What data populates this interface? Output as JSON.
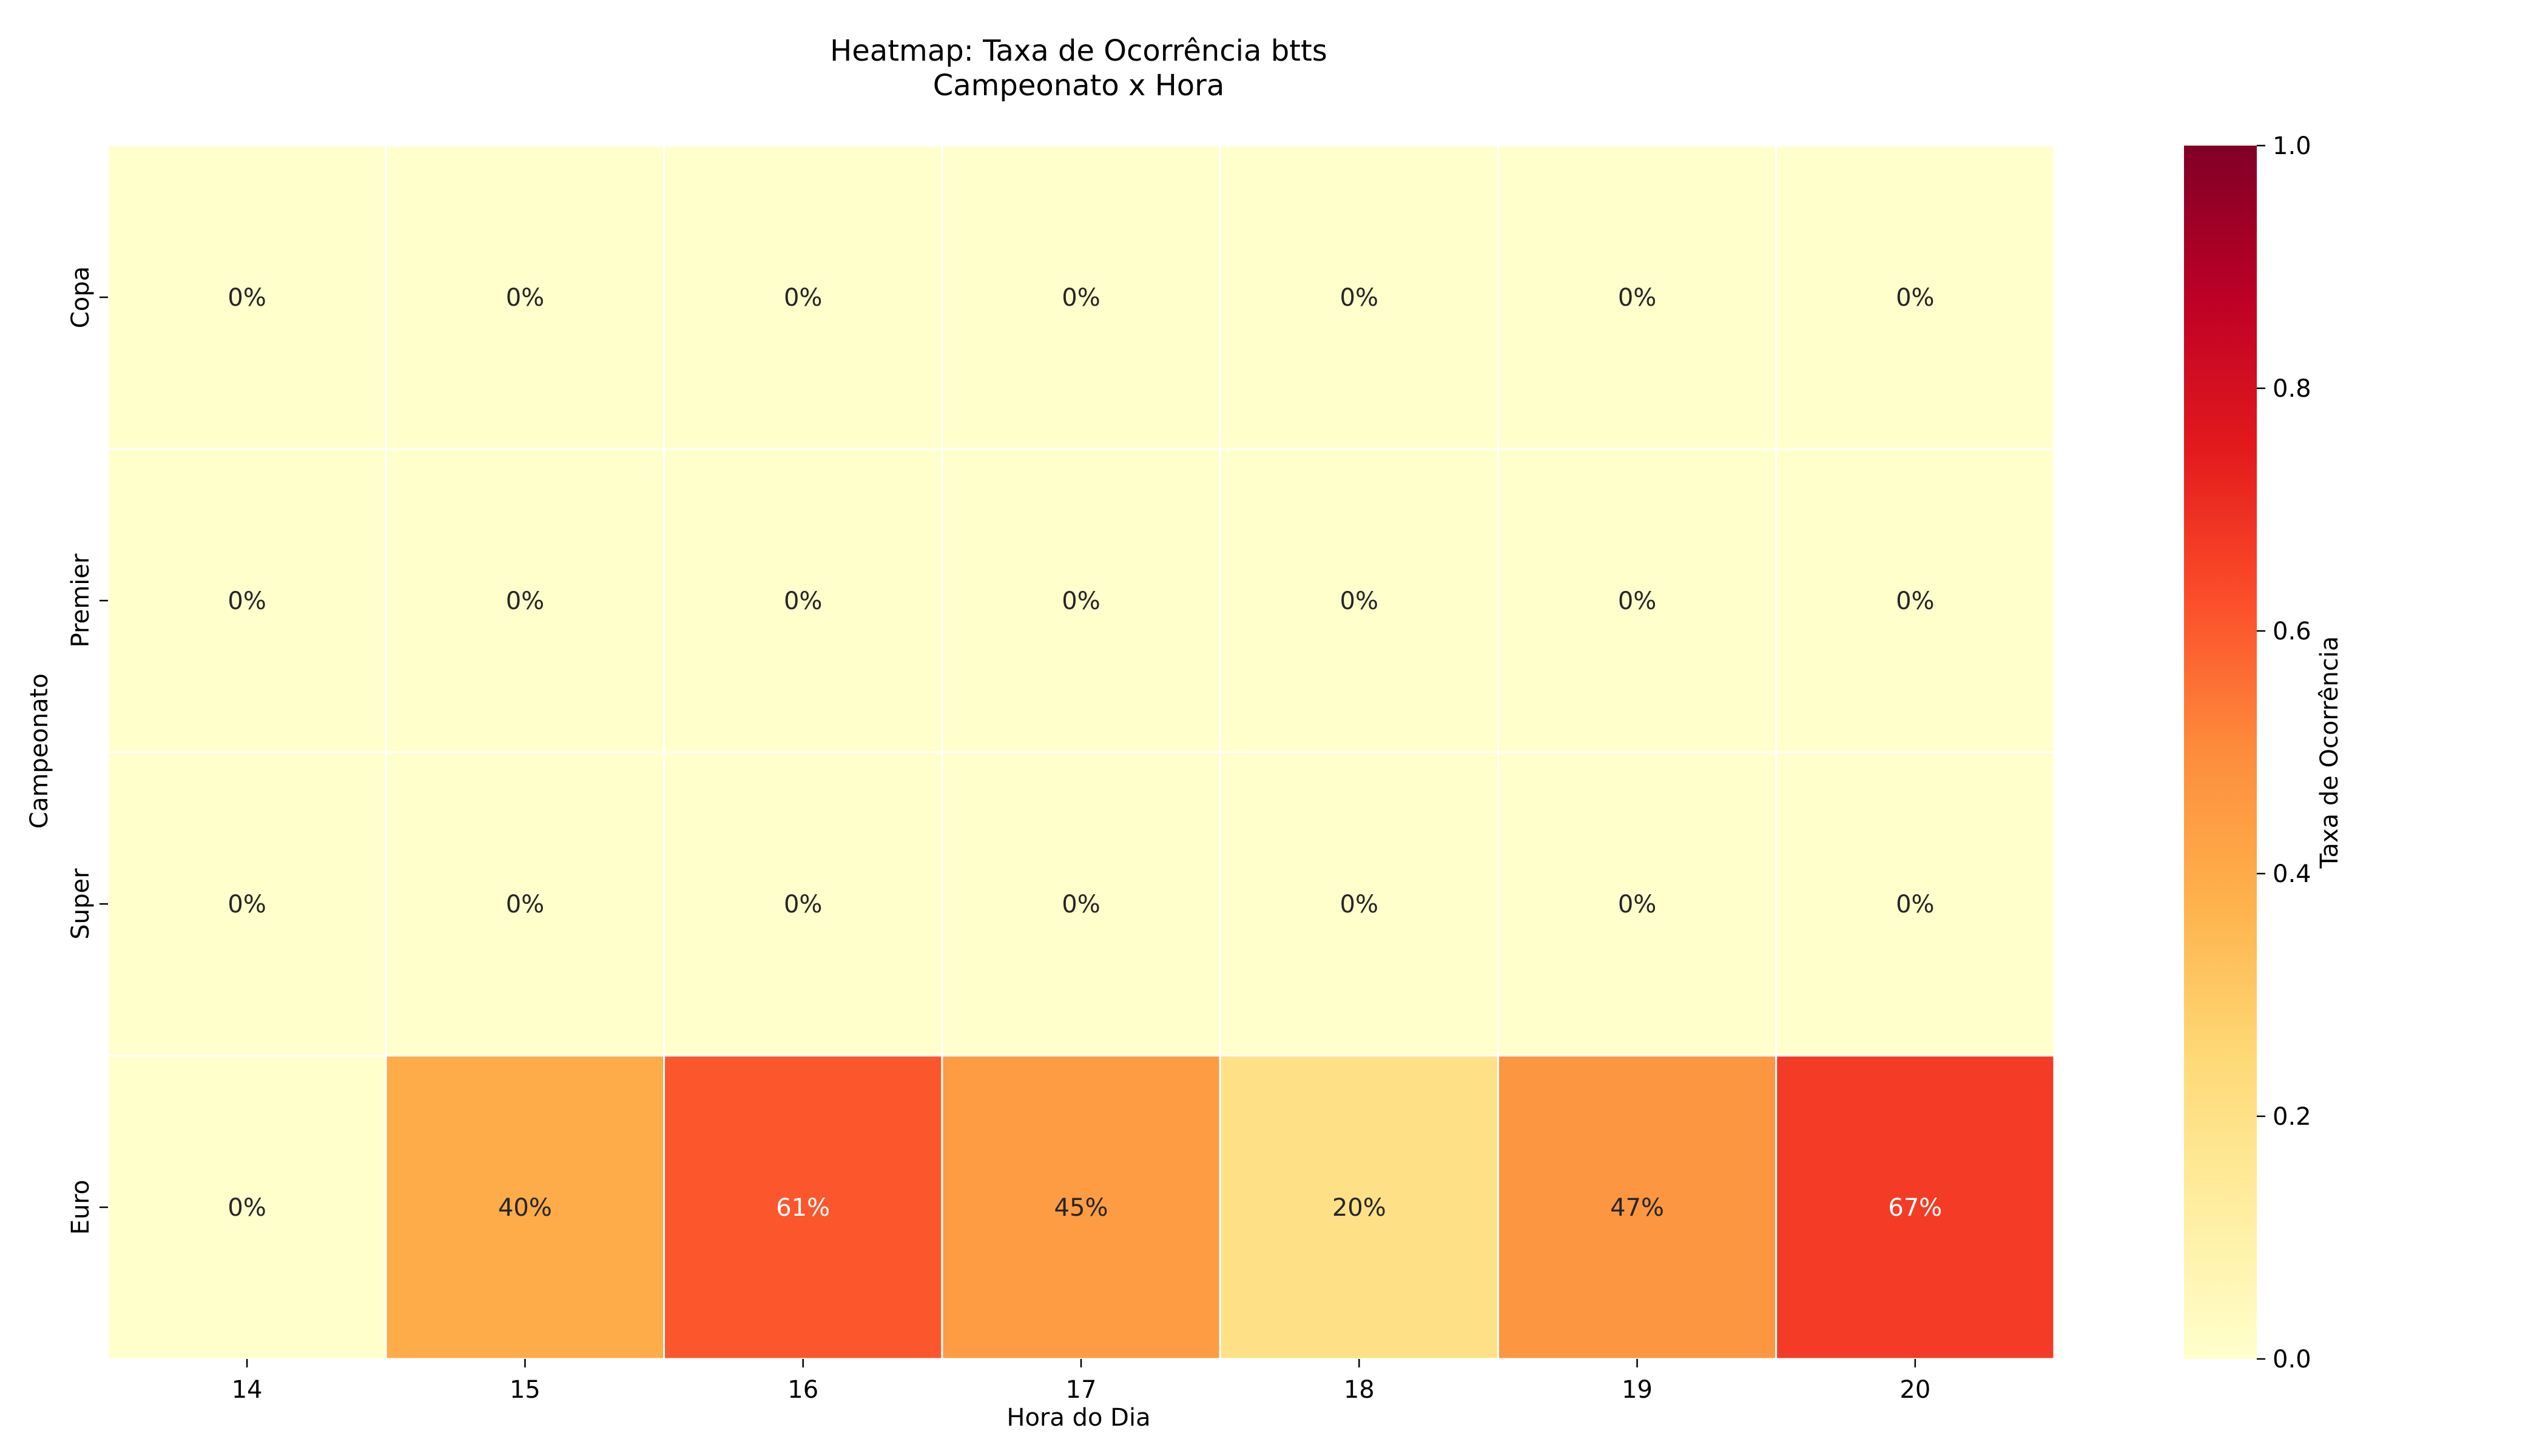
{
  "chart_data": {
    "type": "heatmap",
    "title": "Heatmap: Taxa de Ocorrência btts",
    "subtitle": "Campeonato x Hora",
    "xlabel": "Hora do Dia",
    "ylabel": "Campeonato",
    "x": [
      "14",
      "15",
      "16",
      "17",
      "18",
      "19",
      "20"
    ],
    "y": [
      "Copa",
      "Premier",
      "Super",
      "Euro"
    ],
    "values": [
      [
        0,
        0,
        0,
        0,
        0,
        0,
        0
      ],
      [
        0,
        0,
        0,
        0,
        0,
        0,
        0
      ],
      [
        0,
        0,
        0,
        0,
        0,
        0,
        0
      ],
      [
        0,
        0.4,
        0.61,
        0.45,
        0.2,
        0.47,
        0.67
      ]
    ],
    "cell_labels": [
      [
        "0%",
        "0%",
        "0%",
        "0%",
        "0%",
        "0%",
        "0%"
      ],
      [
        "0%",
        "0%",
        "0%",
        "0%",
        "0%",
        "0%",
        "0%"
      ],
      [
        "0%",
        "0%",
        "0%",
        "0%",
        "0%",
        "0%",
        "0%"
      ],
      [
        "0%",
        "40%",
        "61%",
        "45%",
        "20%",
        "47%",
        "67%"
      ]
    ],
    "colorbar": {
      "label": "Taxa de Ocorrência",
      "range": [
        0.0,
        1.0
      ],
      "ticks": [
        "0.0",
        "0.2",
        "0.4",
        "0.6",
        "0.8",
        "1.0"
      ],
      "colormap": "YlOrRd"
    },
    "grid": false
  }
}
